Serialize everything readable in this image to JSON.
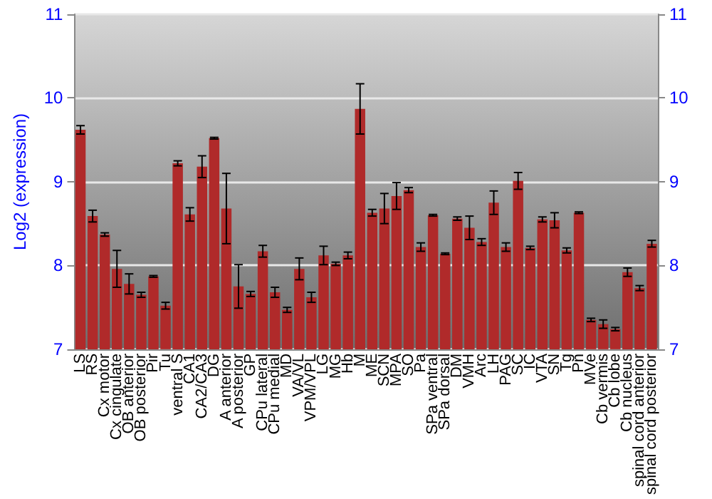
{
  "chart_data": {
    "type": "bar",
    "ylabel": "Log2 (expression)",
    "categories": [
      "LS",
      "RS",
      "Cx motor",
      "Cx cingulate",
      "OB anterior",
      "OB posterior",
      "Pir",
      "Tu",
      "ventral S",
      "CA1",
      "CA2/CA3",
      "DG",
      "A anterior",
      "A posterior",
      "GP",
      "CPu lateral",
      "CPu medial",
      "MD",
      "VA/VL",
      "VPM/VPL",
      "LG",
      "MG",
      "Hb",
      "M",
      "ME",
      "SCN",
      "MPA",
      "SO",
      "Pa",
      "SPa ventral",
      "SPa dorsal",
      "DM",
      "VMH",
      "Arc",
      "LH",
      "PAG",
      "SC",
      "IC",
      "VTA",
      "SN",
      "Tg",
      "Pn",
      "MVe",
      "Cb vermis",
      "Cb lobe",
      "Cb nucleus",
      "spinal cord anterior",
      "spinal cord posterior"
    ],
    "values": [
      9.62,
      8.59,
      8.37,
      7.96,
      7.78,
      7.65,
      7.87,
      7.52,
      9.22,
      8.61,
      9.18,
      9.52,
      8.68,
      7.75,
      7.66,
      8.17,
      7.68,
      7.47,
      7.96,
      7.62,
      8.12,
      8.02,
      8.12,
      9.87,
      8.63,
      8.68,
      8.83,
      8.9,
      8.22,
      8.6,
      8.14,
      8.56,
      8.45,
      8.28,
      8.75,
      8.22,
      9.01,
      8.21,
      8.55,
      8.54,
      8.18,
      8.63,
      7.35,
      7.3,
      7.24,
      7.92,
      7.73,
      8.26
    ],
    "errors": [
      0.05,
      0.07,
      0.02,
      0.22,
      0.12,
      0.03,
      0.01,
      0.04,
      0.03,
      0.08,
      0.13,
      0.01,
      0.42,
      0.26,
      0.03,
      0.07,
      0.06,
      0.03,
      0.13,
      0.06,
      0.11,
      0.02,
      0.04,
      0.3,
      0.04,
      0.18,
      0.16,
      0.03,
      0.05,
      0.01,
      0.01,
      0.02,
      0.14,
      0.04,
      0.14,
      0.05,
      0.1,
      0.02,
      0.03,
      0.09,
      0.03,
      0.01,
      0.02,
      0.05,
      0.02,
      0.05,
      0.03,
      0.04
    ],
    "color": "#b02a2a",
    "ylim": [
      7,
      11
    ],
    "yticks": [
      7,
      8,
      9,
      10,
      11
    ],
    "y2lim": [
      7,
      11
    ],
    "y2ticks": [
      7,
      8,
      9,
      10,
      11
    ],
    "grid": "y"
  }
}
